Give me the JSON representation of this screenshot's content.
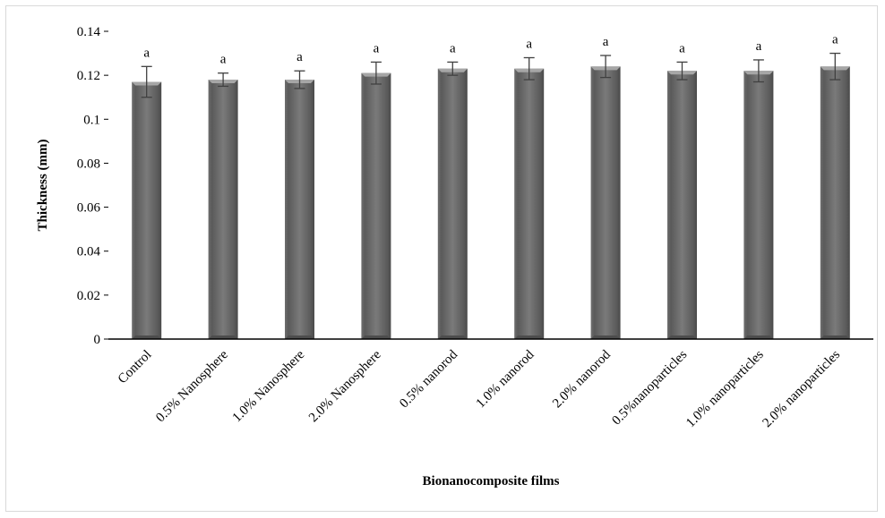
{
  "chart_data": {
    "type": "bar",
    "xlabel": "Bionanocomposite films",
    "ylabel": "Thickness (mm)",
    "ylim": [
      0,
      0.14
    ],
    "yticks": [
      "0",
      "0.02",
      "0.04",
      "0.06",
      "0.08",
      "0.1",
      "0.12",
      "0.14"
    ],
    "grid": false,
    "categories": [
      "Control",
      "0.5% Nanosphere",
      "1.0% Nanosphere",
      "2.0% Nanosphere",
      "0.5% nanorod",
      "1.0% nanorod",
      "2.0% nanorod",
      "0.5%nanoparticles",
      "1.0% nanoparticles",
      "2.0% nanoparticles"
    ],
    "values": [
      0.117,
      0.118,
      0.118,
      0.121,
      0.123,
      0.123,
      0.124,
      0.122,
      0.122,
      0.124
    ],
    "errors": [
      0.007,
      0.003,
      0.004,
      0.005,
      0.003,
      0.005,
      0.005,
      0.004,
      0.005,
      0.006
    ],
    "significance": [
      "a",
      "a",
      "a",
      "a",
      "a",
      "a",
      "a",
      "a",
      "a",
      "a"
    ],
    "colors": {
      "bar_dark": "#4d4d4d",
      "bar_mid": "#8c8c8c",
      "bar_light": "#a6a6a6",
      "axis": "#000000",
      "error": "#404040"
    }
  }
}
